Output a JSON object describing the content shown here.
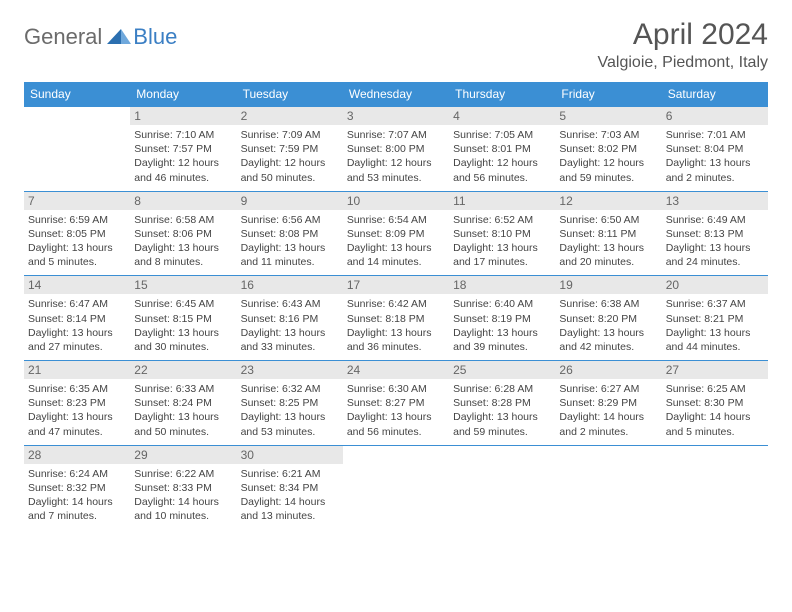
{
  "logo": {
    "general": "General",
    "blue": "Blue"
  },
  "title": "April 2024",
  "location": "Valgioie, Piedmont, Italy",
  "colors": {
    "header_bg": "#3b8fd4",
    "header_fg": "#ffffff",
    "daynum_bg": "#e8e8e8",
    "border": "#3b8fd4",
    "text": "#444444",
    "title": "#555555"
  },
  "weekdays": [
    "Sunday",
    "Monday",
    "Tuesday",
    "Wednesday",
    "Thursday",
    "Friday",
    "Saturday"
  ],
  "weeks": [
    [
      {
        "day": "",
        "sunrise": "",
        "sunset": "",
        "daylight": ""
      },
      {
        "day": "1",
        "sunrise": "Sunrise: 7:10 AM",
        "sunset": "Sunset: 7:57 PM",
        "daylight": "Daylight: 12 hours and 46 minutes."
      },
      {
        "day": "2",
        "sunrise": "Sunrise: 7:09 AM",
        "sunset": "Sunset: 7:59 PM",
        "daylight": "Daylight: 12 hours and 50 minutes."
      },
      {
        "day": "3",
        "sunrise": "Sunrise: 7:07 AM",
        "sunset": "Sunset: 8:00 PM",
        "daylight": "Daylight: 12 hours and 53 minutes."
      },
      {
        "day": "4",
        "sunrise": "Sunrise: 7:05 AM",
        "sunset": "Sunset: 8:01 PM",
        "daylight": "Daylight: 12 hours and 56 minutes."
      },
      {
        "day": "5",
        "sunrise": "Sunrise: 7:03 AM",
        "sunset": "Sunset: 8:02 PM",
        "daylight": "Daylight: 12 hours and 59 minutes."
      },
      {
        "day": "6",
        "sunrise": "Sunrise: 7:01 AM",
        "sunset": "Sunset: 8:04 PM",
        "daylight": "Daylight: 13 hours and 2 minutes."
      }
    ],
    [
      {
        "day": "7",
        "sunrise": "Sunrise: 6:59 AM",
        "sunset": "Sunset: 8:05 PM",
        "daylight": "Daylight: 13 hours and 5 minutes."
      },
      {
        "day": "8",
        "sunrise": "Sunrise: 6:58 AM",
        "sunset": "Sunset: 8:06 PM",
        "daylight": "Daylight: 13 hours and 8 minutes."
      },
      {
        "day": "9",
        "sunrise": "Sunrise: 6:56 AM",
        "sunset": "Sunset: 8:08 PM",
        "daylight": "Daylight: 13 hours and 11 minutes."
      },
      {
        "day": "10",
        "sunrise": "Sunrise: 6:54 AM",
        "sunset": "Sunset: 8:09 PM",
        "daylight": "Daylight: 13 hours and 14 minutes."
      },
      {
        "day": "11",
        "sunrise": "Sunrise: 6:52 AM",
        "sunset": "Sunset: 8:10 PM",
        "daylight": "Daylight: 13 hours and 17 minutes."
      },
      {
        "day": "12",
        "sunrise": "Sunrise: 6:50 AM",
        "sunset": "Sunset: 8:11 PM",
        "daylight": "Daylight: 13 hours and 20 minutes."
      },
      {
        "day": "13",
        "sunrise": "Sunrise: 6:49 AM",
        "sunset": "Sunset: 8:13 PM",
        "daylight": "Daylight: 13 hours and 24 minutes."
      }
    ],
    [
      {
        "day": "14",
        "sunrise": "Sunrise: 6:47 AM",
        "sunset": "Sunset: 8:14 PM",
        "daylight": "Daylight: 13 hours and 27 minutes."
      },
      {
        "day": "15",
        "sunrise": "Sunrise: 6:45 AM",
        "sunset": "Sunset: 8:15 PM",
        "daylight": "Daylight: 13 hours and 30 minutes."
      },
      {
        "day": "16",
        "sunrise": "Sunrise: 6:43 AM",
        "sunset": "Sunset: 8:16 PM",
        "daylight": "Daylight: 13 hours and 33 minutes."
      },
      {
        "day": "17",
        "sunrise": "Sunrise: 6:42 AM",
        "sunset": "Sunset: 8:18 PM",
        "daylight": "Daylight: 13 hours and 36 minutes."
      },
      {
        "day": "18",
        "sunrise": "Sunrise: 6:40 AM",
        "sunset": "Sunset: 8:19 PM",
        "daylight": "Daylight: 13 hours and 39 minutes."
      },
      {
        "day": "19",
        "sunrise": "Sunrise: 6:38 AM",
        "sunset": "Sunset: 8:20 PM",
        "daylight": "Daylight: 13 hours and 42 minutes."
      },
      {
        "day": "20",
        "sunrise": "Sunrise: 6:37 AM",
        "sunset": "Sunset: 8:21 PM",
        "daylight": "Daylight: 13 hours and 44 minutes."
      }
    ],
    [
      {
        "day": "21",
        "sunrise": "Sunrise: 6:35 AM",
        "sunset": "Sunset: 8:23 PM",
        "daylight": "Daylight: 13 hours and 47 minutes."
      },
      {
        "day": "22",
        "sunrise": "Sunrise: 6:33 AM",
        "sunset": "Sunset: 8:24 PM",
        "daylight": "Daylight: 13 hours and 50 minutes."
      },
      {
        "day": "23",
        "sunrise": "Sunrise: 6:32 AM",
        "sunset": "Sunset: 8:25 PM",
        "daylight": "Daylight: 13 hours and 53 minutes."
      },
      {
        "day": "24",
        "sunrise": "Sunrise: 6:30 AM",
        "sunset": "Sunset: 8:27 PM",
        "daylight": "Daylight: 13 hours and 56 minutes."
      },
      {
        "day": "25",
        "sunrise": "Sunrise: 6:28 AM",
        "sunset": "Sunset: 8:28 PM",
        "daylight": "Daylight: 13 hours and 59 minutes."
      },
      {
        "day": "26",
        "sunrise": "Sunrise: 6:27 AM",
        "sunset": "Sunset: 8:29 PM",
        "daylight": "Daylight: 14 hours and 2 minutes."
      },
      {
        "day": "27",
        "sunrise": "Sunrise: 6:25 AM",
        "sunset": "Sunset: 8:30 PM",
        "daylight": "Daylight: 14 hours and 5 minutes."
      }
    ],
    [
      {
        "day": "28",
        "sunrise": "Sunrise: 6:24 AM",
        "sunset": "Sunset: 8:32 PM",
        "daylight": "Daylight: 14 hours and 7 minutes."
      },
      {
        "day": "29",
        "sunrise": "Sunrise: 6:22 AM",
        "sunset": "Sunset: 8:33 PM",
        "daylight": "Daylight: 14 hours and 10 minutes."
      },
      {
        "day": "30",
        "sunrise": "Sunrise: 6:21 AM",
        "sunset": "Sunset: 8:34 PM",
        "daylight": "Daylight: 14 hours and 13 minutes."
      },
      {
        "day": "",
        "sunrise": "",
        "sunset": "",
        "daylight": ""
      },
      {
        "day": "",
        "sunrise": "",
        "sunset": "",
        "daylight": ""
      },
      {
        "day": "",
        "sunrise": "",
        "sunset": "",
        "daylight": ""
      },
      {
        "day": "",
        "sunrise": "",
        "sunset": "",
        "daylight": ""
      }
    ]
  ]
}
